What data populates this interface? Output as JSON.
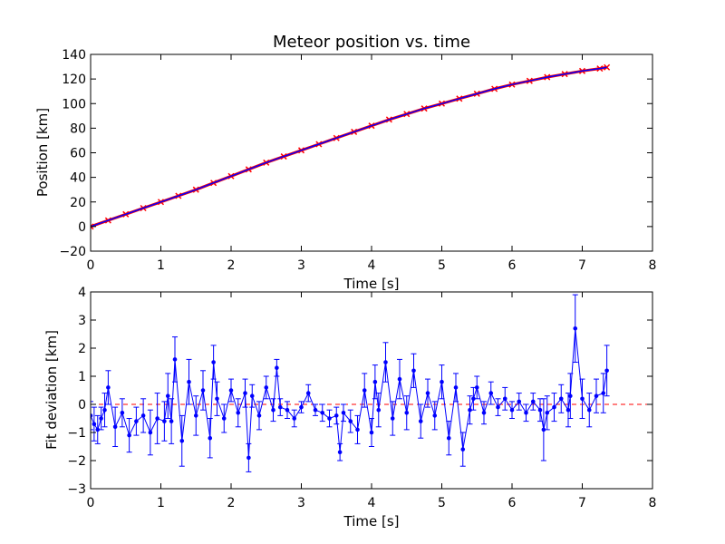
{
  "chart_data": [
    {
      "type": "line",
      "title": "Meteor position vs. time",
      "xlabel": "Time [s]",
      "ylabel": "Position [km]",
      "xlim": [
        0,
        8
      ],
      "ylim": [
        -20,
        140
      ],
      "xticks": [
        "0",
        "1",
        "2",
        "3",
        "4",
        "5",
        "6",
        "7",
        "8"
      ],
      "yticks": [
        "−20",
        "0",
        "20",
        "40",
        "60",
        "80",
        "100",
        "120",
        "140"
      ],
      "grid": false,
      "series": [
        {
          "kind": "measured",
          "color": "#ff0000",
          "marker": "x",
          "x": [
            0.0,
            0.25,
            0.5,
            0.75,
            1.0,
            1.25,
            1.5,
            1.75,
            2.0,
            2.25,
            2.5,
            2.75,
            3.0,
            3.25,
            3.5,
            3.75,
            4.0,
            4.25,
            4.5,
            4.75,
            5.0,
            5.25,
            5.5,
            5.75,
            6.0,
            6.25,
            6.5,
            6.75,
            7.0,
            7.25,
            7.35
          ],
          "y": [
            0.0,
            5.0,
            10.0,
            15.0,
            20.0,
            25.0,
            30.0,
            35.5,
            41.0,
            46.5,
            52.0,
            57.0,
            62.0,
            67.0,
            72.0,
            77.0,
            82.0,
            87.0,
            91.5,
            96.0,
            100.0,
            104.0,
            108.0,
            112.0,
            115.5,
            118.5,
            121.5,
            124.0,
            126.5,
            128.5,
            129.5
          ]
        },
        {
          "kind": "fit",
          "color": "#0000ff",
          "x": [
            0.0,
            0.25,
            0.5,
            0.75,
            1.0,
            1.25,
            1.5,
            1.75,
            2.0,
            2.25,
            2.5,
            2.75,
            3.0,
            3.25,
            3.5,
            3.75,
            4.0,
            4.25,
            4.5,
            4.75,
            5.0,
            5.25,
            5.5,
            5.75,
            6.0,
            6.25,
            6.5,
            6.75,
            7.0,
            7.25,
            7.35
          ],
          "y": [
            0.0,
            5.0,
            10.0,
            15.0,
            20.0,
            25.0,
            30.0,
            35.5,
            41.0,
            46.5,
            52.0,
            57.0,
            62.0,
            67.0,
            72.0,
            77.0,
            82.0,
            87.0,
            91.5,
            96.0,
            100.0,
            104.0,
            108.0,
            112.0,
            115.5,
            118.5,
            121.5,
            124.0,
            126.5,
            128.5,
            129.5
          ]
        }
      ]
    },
    {
      "type": "line",
      "title": "",
      "xlabel": "Time [s]",
      "ylabel": "Fit deviation [km]",
      "xlim": [
        0,
        8
      ],
      "ylim": [
        -3,
        4
      ],
      "xticks": [
        "0",
        "1",
        "2",
        "3",
        "4",
        "5",
        "6",
        "7",
        "8"
      ],
      "yticks": [
        "−3",
        "−2",
        "−1",
        "0",
        "1",
        "2",
        "3",
        "4"
      ],
      "grid": false,
      "zero_line": {
        "y": 0,
        "color": "#ff0000",
        "style": "dashed"
      },
      "series": [
        {
          "kind": "deviation",
          "color": "#0000ff",
          "marker": "dot",
          "error_bars": true,
          "x": [
            0.0,
            0.05,
            0.1,
            0.15,
            0.2,
            0.25,
            0.35,
            0.45,
            0.55,
            0.65,
            0.75,
            0.85,
            0.95,
            1.05,
            1.1,
            1.15,
            1.2,
            1.3,
            1.4,
            1.5,
            1.6,
            1.7,
            1.75,
            1.8,
            1.9,
            2.0,
            2.1,
            2.2,
            2.25,
            2.3,
            2.4,
            2.5,
            2.6,
            2.65,
            2.7,
            2.8,
            2.9,
            3.0,
            3.1,
            3.2,
            3.3,
            3.4,
            3.5,
            3.55,
            3.6,
            3.7,
            3.8,
            3.9,
            4.0,
            4.05,
            4.1,
            4.2,
            4.3,
            4.4,
            4.5,
            4.6,
            4.7,
            4.8,
            4.9,
            5.0,
            5.1,
            5.2,
            5.3,
            5.4,
            5.45,
            5.5,
            5.6,
            5.7,
            5.8,
            5.9,
            6.0,
            6.1,
            6.2,
            6.3,
            6.4,
            6.45,
            6.5,
            6.6,
            6.7,
            6.8,
            6.83,
            6.9,
            7.0,
            7.1,
            7.2,
            7.3,
            7.35
          ],
          "y": [
            -0.4,
            -0.7,
            -0.9,
            -0.5,
            -0.2,
            0.6,
            -0.8,
            -0.3,
            -1.1,
            -0.6,
            -0.4,
            -1.0,
            -0.5,
            -0.6,
            0.3,
            -0.6,
            1.6,
            -1.3,
            0.8,
            -0.4,
            0.5,
            -1.2,
            1.5,
            0.2,
            -0.5,
            0.5,
            -0.3,
            0.4,
            -1.9,
            0.3,
            -0.4,
            0.6,
            -0.2,
            1.3,
            -0.1,
            -0.2,
            -0.5,
            -0.1,
            0.4,
            -0.2,
            -0.3,
            -0.5,
            -0.4,
            -1.7,
            -0.3,
            -0.6,
            -0.9,
            0.5,
            -1.0,
            0.8,
            -0.2,
            1.5,
            -0.5,
            0.9,
            -0.3,
            1.2,
            -0.6,
            0.4,
            -0.4,
            0.8,
            -1.2,
            0.6,
            -1.6,
            -0.2,
            0.2,
            0.6,
            -0.3,
            0.4,
            -0.1,
            0.2,
            -0.2,
            0.1,
            -0.3,
            0.1,
            -0.2,
            -0.9,
            -0.3,
            -0.1,
            0.2,
            -0.2,
            0.3,
            2.7,
            0.2,
            -0.2,
            0.3,
            0.4,
            1.2
          ],
          "err": [
            0.5,
            0.6,
            0.5,
            0.4,
            0.6,
            0.6,
            0.7,
            0.5,
            0.6,
            0.5,
            0.6,
            0.8,
            0.9,
            0.7,
            0.8,
            0.8,
            0.8,
            0.9,
            0.8,
            0.7,
            0.7,
            0.7,
            0.6,
            0.6,
            0.5,
            0.4,
            0.5,
            0.5,
            0.5,
            0.4,
            0.5,
            0.4,
            0.4,
            0.3,
            0.3,
            0.3,
            0.3,
            0.2,
            0.3,
            0.2,
            0.3,
            0.3,
            0.3,
            0.3,
            0.3,
            0.4,
            0.5,
            0.6,
            0.5,
            0.6,
            0.6,
            0.7,
            0.6,
            0.7,
            0.6,
            0.6,
            0.6,
            0.5,
            0.5,
            0.6,
            0.6,
            0.5,
            0.6,
            0.5,
            0.4,
            0.4,
            0.4,
            0.4,
            0.3,
            0.4,
            0.3,
            0.3,
            0.3,
            0.3,
            0.4,
            1.1,
            0.6,
            0.5,
            0.5,
            0.6,
            0.8,
            1.2,
            0.7,
            0.6,
            0.6,
            0.7,
            0.9
          ]
        }
      ]
    }
  ]
}
